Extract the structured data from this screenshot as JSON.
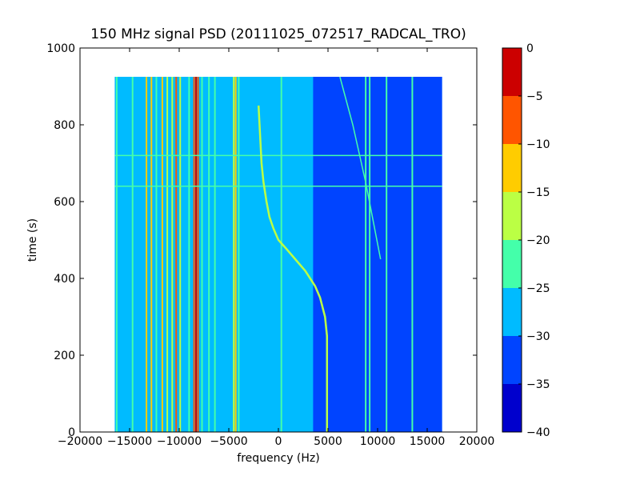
{
  "chart_data": {
    "type": "heatmap",
    "title": "150 MHz signal PSD (20111025_072517_RADCAL_TRO)",
    "xlabel": "frequency (Hz)",
    "ylabel": "time (s)",
    "xlim": [
      -20000,
      20000
    ],
    "ylim": [
      0,
      1000
    ],
    "xticks": [
      -20000,
      -15000,
      -10000,
      -5000,
      0,
      5000,
      10000,
      15000,
      20000
    ],
    "xtick_labels": [
      "−20000",
      "−15000",
      "−10000",
      "−5000",
      "0",
      "5000",
      "10000",
      "15000",
      "20000"
    ],
    "yticks": [
      0,
      200,
      400,
      600,
      800,
      1000
    ],
    "ytick_labels": [
      "0",
      "200",
      "400",
      "600",
      "800",
      "1000"
    ],
    "data_extent": {
      "freq": [
        -16500,
        16500
      ],
      "time": [
        0,
        925
      ]
    },
    "grid": false,
    "colorbar": {
      "levels": [
        -40,
        -35,
        -30,
        -25,
        -20,
        -15,
        -10,
        -5,
        0
      ],
      "tick_labels": [
        "−40",
        "−35",
        "−30",
        "−25",
        "−20",
        "−15",
        "−10",
        "−5",
        "0"
      ],
      "colors": [
        "#0000cd",
        "#0044ff",
        "#00bbff",
        "#44ffaa",
        "#bbff44",
        "#ffcc00",
        "#ff5500",
        "#cc0000"
      ]
    },
    "background_level": -30,
    "regions": [
      {
        "freq": [
          3500,
          8500
        ],
        "level": -35
      },
      {
        "freq": [
          8500,
          16500
        ],
        "level": -35
      }
    ],
    "lines": [
      {
        "freq": -16300,
        "level": -25
      },
      {
        "freq": -14700,
        "level": -25
      },
      {
        "freq": -13300,
        "level": -15
      },
      {
        "freq": -12800,
        "level": -15
      },
      {
        "freq": -12300,
        "level": -25
      },
      {
        "freq": -11700,
        "level": -15
      },
      {
        "freq": -11200,
        "level": -20
      },
      {
        "freq": -10700,
        "level": -20
      },
      {
        "freq": -10300,
        "level": -10
      },
      {
        "freq": -9900,
        "level": -20
      },
      {
        "freq": -9000,
        "level": -25
      },
      {
        "freq": -8500,
        "level": -10
      },
      {
        "freq": -8300,
        "level": -5
      },
      {
        "freq": -8100,
        "level": -10
      },
      {
        "freq": -7700,
        "level": -25
      },
      {
        "freq": -7000,
        "level": -25
      },
      {
        "freq": -6400,
        "level": -25
      },
      {
        "freq": -4500,
        "level": -20
      },
      {
        "freq": -4300,
        "level": -15
      },
      {
        "freq": -4000,
        "level": -25
      },
      {
        "freq": 300,
        "level": -25
      },
      {
        "freq": 8800,
        "level": -25
      },
      {
        "freq": 9200,
        "level": -25
      },
      {
        "freq": 10900,
        "level": -25
      },
      {
        "freq": 13500,
        "level": -25
      }
    ],
    "horizontal_lines": [
      {
        "time": 720,
        "level": -25
      },
      {
        "time": 640,
        "level": -25
      }
    ],
    "drift_curve": {
      "level": -20,
      "time": [
        0,
        250,
        300,
        350,
        380,
        420,
        450,
        480,
        500,
        530,
        560,
        600,
        650,
        700,
        750,
        800,
        850
      ],
      "freq": [
        4900,
        4900,
        4700,
        4200,
        3700,
        2700,
        1700,
        700,
        0,
        -500,
        -900,
        -1200,
        -1500,
        -1700,
        -1800,
        -1900,
        -2000
      ]
    },
    "drift_curve_2": {
      "level": -25,
      "time": [
        450,
        650,
        800,
        925
      ],
      "freq": [
        10300,
        8800,
        7500,
        6200
      ]
    }
  }
}
